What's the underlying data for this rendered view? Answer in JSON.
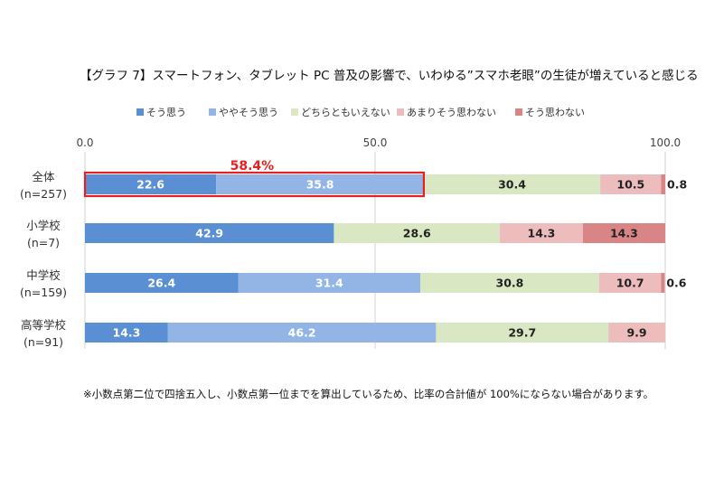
{
  "chart_data": {
    "type": "bar",
    "orientation": "horizontal",
    "stacked": true,
    "title": "【グラフ 7】スマートフォン、タブレット PC 普及の影響で、いわゆる”スマホ老眼”の生徒が増えていると感じる（%）",
    "xlim": [
      0,
      100
    ],
    "x_ticks": [
      "0.0",
      "50.0",
      "100.0"
    ],
    "x_tick_values": [
      0,
      50,
      100
    ],
    "grid": true,
    "legend_position": "top",
    "categories": [
      {
        "name": "全体",
        "n": "(n=257)"
      },
      {
        "name": "小学校",
        "n": "(n=7)"
      },
      {
        "name": "中学校",
        "n": "(n=159)"
      },
      {
        "name": "高等学校",
        "n": "(n=91)"
      }
    ],
    "series": [
      {
        "name": "そう思う",
        "color": "#5b8fd4",
        "values": [
          22.6,
          42.9,
          26.4,
          14.3
        ],
        "labels": [
          "22.6",
          "42.9",
          "26.4",
          "14.3"
        ],
        "label_color": "#ffffff"
      },
      {
        "name": "ややそう思う",
        "color": "#92b5e6",
        "values": [
          35.8,
          0,
          31.4,
          46.2
        ],
        "labels": [
          "35.8",
          "",
          "31.4",
          "46.2"
        ],
        "label_color": "#ffffff"
      },
      {
        "name": "どちらともいえない",
        "color": "#d9e8c3",
        "values": [
          30.4,
          28.6,
          30.8,
          29.7
        ],
        "labels": [
          "30.4",
          "28.6",
          "30.8",
          "29.7"
        ],
        "label_color": "#222222"
      },
      {
        "name": "あまりそう思わない",
        "color": "#edbcbc",
        "values": [
          10.5,
          14.3,
          10.7,
          9.9
        ],
        "labels": [
          "10.5",
          "14.3",
          "10.7",
          "9.9"
        ],
        "label_color": "#222222"
      },
      {
        "name": "そう思わない",
        "color": "#d98585",
        "values": [
          0.8,
          14.3,
          0.6,
          0
        ],
        "labels": [
          "0.8",
          "14.3",
          "0.6",
          ""
        ],
        "label_color": "#222222"
      }
    ],
    "highlight": {
      "category_index": 0,
      "from": 0,
      "to": 58.4,
      "label": "58.4%",
      "color": "#e8201f"
    }
  },
  "footnote": "※小数点第二位で四捨五入し、小数点第一位までを算出しているため、比率の合計値が 100%にならない場合があります。"
}
